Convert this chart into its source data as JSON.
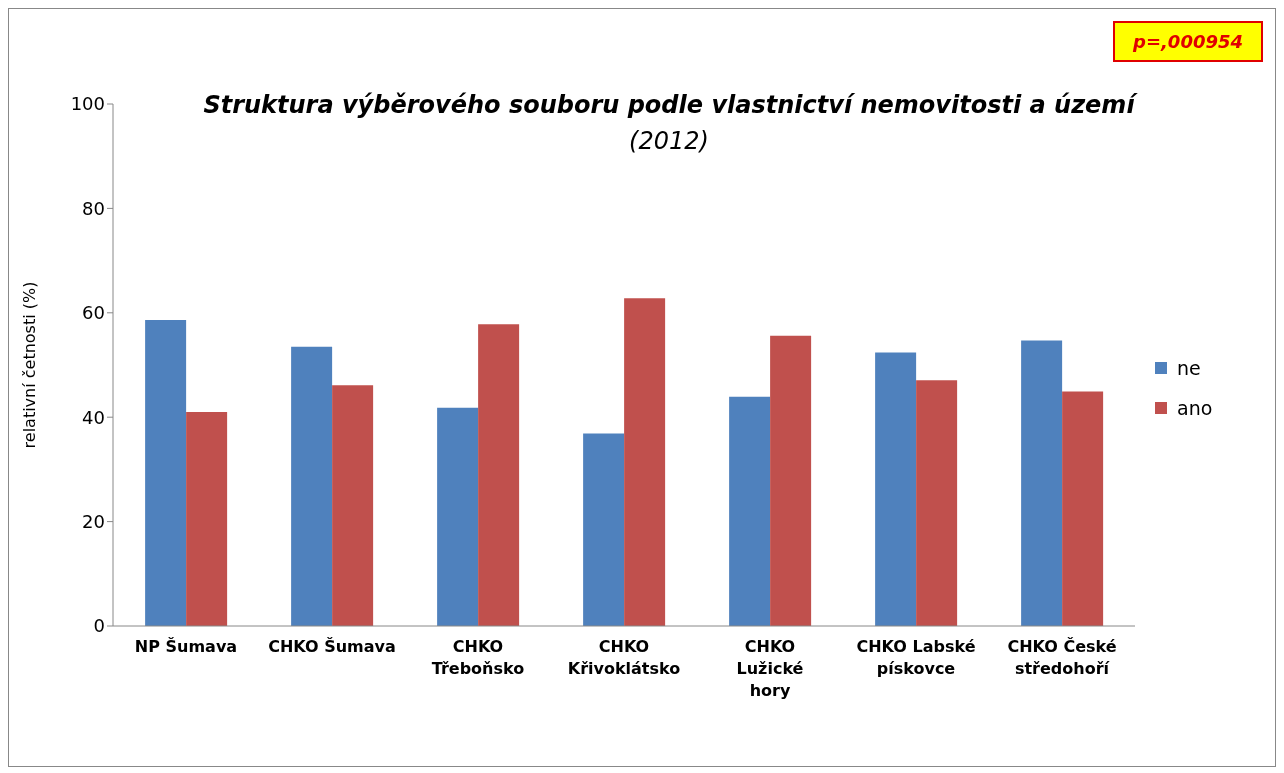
{
  "chart_data": {
    "type": "bar",
    "title": "Struktura výběrového  souboru podle vlastnictví nemovitosti a území",
    "subtitle": "(2012)",
    "ylabel": "relativní četnosti (%)",
    "annotations": [
      "p=,000954"
    ],
    "categories": [
      "NP Šumava",
      "CHKO Šumava",
      "CHKO Třeboňsko",
      "CHKO Křivoklátsko",
      "CHKO Lužické hory",
      "CHKO Labské pískovce",
      "CHKO České středohoří"
    ],
    "series": [
      {
        "name": "ne",
        "color": "#4f81bd",
        "values": [
          58.6,
          53.5,
          41.8,
          36.9,
          43.9,
          52.4,
          54.7
        ]
      },
      {
        "name": "ano",
        "color": "#c0504d",
        "values": [
          41.0,
          46.1,
          57.8,
          62.8,
          55.6,
          47.1,
          44.9
        ]
      }
    ],
    "ylim": [
      0,
      100
    ],
    "yticks": [
      0,
      20,
      40,
      60,
      80,
      100
    ],
    "grid": false,
    "legend": "right"
  }
}
